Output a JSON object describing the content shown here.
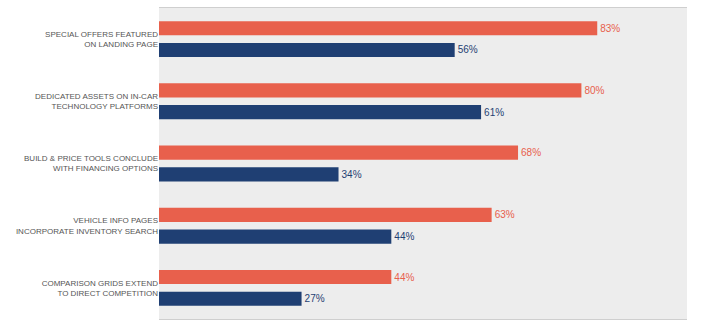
{
  "chart_data": {
    "type": "bar",
    "orientation": "horizontal",
    "categories": [
      "SPECIAL OFFERS FEATURED ON LANDING PAGE",
      "DEDICATED ASSETS ON IN-CAR TECHNOLOGY PLATFORMS",
      "BUILD & PRICE TOOLS CONCLUDE WITH FINANCING OPTIONS",
      "VEHICLE INFO PAGES INCORPORATE INVENTORY SEARCH",
      "COMPARISON GRIDS EXTEND TO DIRECT COMPETITION"
    ],
    "series": [
      {
        "color": "#e8604c",
        "values": [
          83,
          80,
          68,
          63,
          44
        ],
        "value_labels": [
          "83%",
          "80%",
          "68%",
          "63%",
          "44%"
        ]
      },
      {
        "color": "#1f3f73",
        "values": [
          56,
          61,
          34,
          44,
          27
        ],
        "value_labels": [
          "56%",
          "61%",
          "34%",
          "44%",
          "27%"
        ]
      }
    ],
    "xlim": [
      0,
      100
    ],
    "grid": false,
    "data_labels": true,
    "tick_labels": "y"
  }
}
